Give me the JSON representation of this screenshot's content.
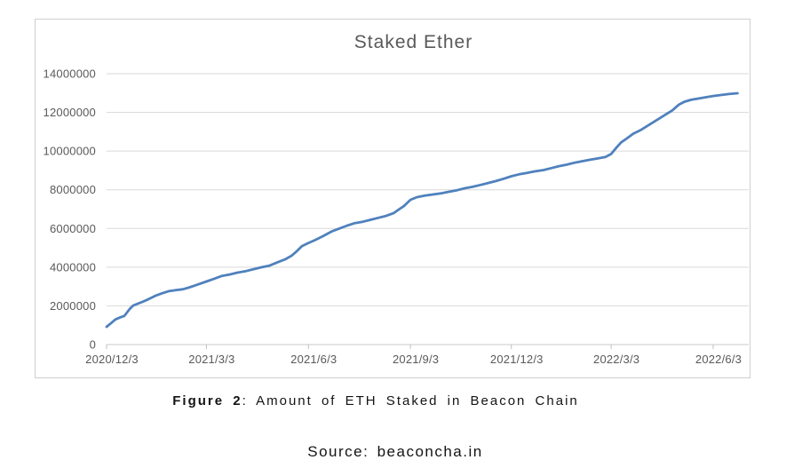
{
  "caption": {
    "label": "Figure 2",
    "text": ": Amount of ETH Staked in Beacon Chain"
  },
  "source": {
    "text": "Source: beaconcha.in"
  },
  "chart_data": {
    "type": "line",
    "title": "Staked Ether",
    "xlabel": "",
    "ylabel": "",
    "ylim": [
      0,
      14000000
    ],
    "grid": true,
    "legend": "none",
    "line_color": "#4f81bd",
    "grid_color": "#d9d9d9",
    "axis_color": "#c9c9c9",
    "tick_color": "#bfbfbf",
    "label_color": "#595959",
    "y_ticks": [
      0,
      2000000,
      4000000,
      6000000,
      8000000,
      10000000,
      12000000,
      14000000
    ],
    "x_tick_labels": [
      "2020/12/3",
      "2021/3/3",
      "2021/6/3",
      "2021/9/3",
      "2021/12/3",
      "2022/3/3",
      "2022/6/3"
    ],
    "series_name": "Staked Ether",
    "points": [
      [
        "2020/12/3",
        920000
      ],
      [
        "2020/12/8",
        1150000
      ],
      [
        "2020/12/11",
        1300000
      ],
      [
        "2020/12/16",
        1420000
      ],
      [
        "2020/12/19",
        1480000
      ],
      [
        "2020/12/24",
        1850000
      ],
      [
        "2020/12/27",
        2020000
      ],
      [
        "2021/1/4",
        2200000
      ],
      [
        "2021/1/10",
        2350000
      ],
      [
        "2021/1/16",
        2520000
      ],
      [
        "2021/1/22",
        2650000
      ],
      [
        "2021/1/28",
        2760000
      ],
      [
        "2021/2/4",
        2820000
      ],
      [
        "2021/2/10",
        2860000
      ],
      [
        "2021/2/16",
        2960000
      ],
      [
        "2021/2/22",
        3080000
      ],
      [
        "2021/3/3",
        3260000
      ],
      [
        "2021/3/10",
        3400000
      ],
      [
        "2021/3/17",
        3550000
      ],
      [
        "2021/3/24",
        3620000
      ],
      [
        "2021/3/31",
        3720000
      ],
      [
        "2021/4/8",
        3800000
      ],
      [
        "2021/4/15",
        3900000
      ],
      [
        "2021/4/22",
        4000000
      ],
      [
        "2021/4/29",
        4080000
      ],
      [
        "2021/5/6",
        4250000
      ],
      [
        "2021/5/13",
        4400000
      ],
      [
        "2021/5/19",
        4600000
      ],
      [
        "2021/5/24",
        4850000
      ],
      [
        "2021/5/28",
        5080000
      ],
      [
        "2021/6/3",
        5250000
      ],
      [
        "2021/6/9",
        5400000
      ],
      [
        "2021/6/16",
        5600000
      ],
      [
        "2021/6/24",
        5850000
      ],
      [
        "2021/7/1",
        6000000
      ],
      [
        "2021/7/8",
        6150000
      ],
      [
        "2021/7/15",
        6280000
      ],
      [
        "2021/7/22",
        6350000
      ],
      [
        "2021/7/29",
        6450000
      ],
      [
        "2021/8/5",
        6550000
      ],
      [
        "2021/8/12",
        6650000
      ],
      [
        "2021/8/19",
        6800000
      ],
      [
        "2021/8/24",
        7000000
      ],
      [
        "2021/8/28",
        7150000
      ],
      [
        "2021/9/3",
        7480000
      ],
      [
        "2021/9/9",
        7620000
      ],
      [
        "2021/9/16",
        7700000
      ],
      [
        "2021/9/24",
        7760000
      ],
      [
        "2021/10/1",
        7820000
      ],
      [
        "2021/10/8",
        7900000
      ],
      [
        "2021/10/15",
        7980000
      ],
      [
        "2021/10/22",
        8080000
      ],
      [
        "2021/10/29",
        8150000
      ],
      [
        "2021/11/5",
        8250000
      ],
      [
        "2021/11/12",
        8350000
      ],
      [
        "2021/11/19",
        8450000
      ],
      [
        "2021/11/26",
        8570000
      ],
      [
        "2021/12/3",
        8700000
      ],
      [
        "2021/12/10",
        8800000
      ],
      [
        "2021/12/17",
        8870000
      ],
      [
        "2021/12/24",
        8950000
      ],
      [
        "2022/1/1",
        9020000
      ],
      [
        "2022/1/8",
        9120000
      ],
      [
        "2022/1/15",
        9220000
      ],
      [
        "2022/1/22",
        9300000
      ],
      [
        "2022/1/29",
        9400000
      ],
      [
        "2022/2/5",
        9480000
      ],
      [
        "2022/2/12",
        9550000
      ],
      [
        "2022/2/19",
        9620000
      ],
      [
        "2022/2/26",
        9700000
      ],
      [
        "2022/3/3",
        9850000
      ],
      [
        "2022/3/8",
        10200000
      ],
      [
        "2022/3/12",
        10450000
      ],
      [
        "2022/3/17",
        10650000
      ],
      [
        "2022/3/23",
        10900000
      ],
      [
        "2022/3/30",
        11100000
      ],
      [
        "2022/4/6",
        11350000
      ],
      [
        "2022/4/13",
        11600000
      ],
      [
        "2022/4/20",
        11850000
      ],
      [
        "2022/4/27",
        12100000
      ],
      [
        "2022/5/3",
        12400000
      ],
      [
        "2022/5/8",
        12550000
      ],
      [
        "2022/5/14",
        12650000
      ],
      [
        "2022/5/21",
        12720000
      ],
      [
        "2022/5/28",
        12790000
      ],
      [
        "2022/6/3",
        12850000
      ],
      [
        "2022/6/10",
        12900000
      ],
      [
        "2022/6/17",
        12950000
      ],
      [
        "2022/6/25",
        12990000
      ]
    ]
  }
}
